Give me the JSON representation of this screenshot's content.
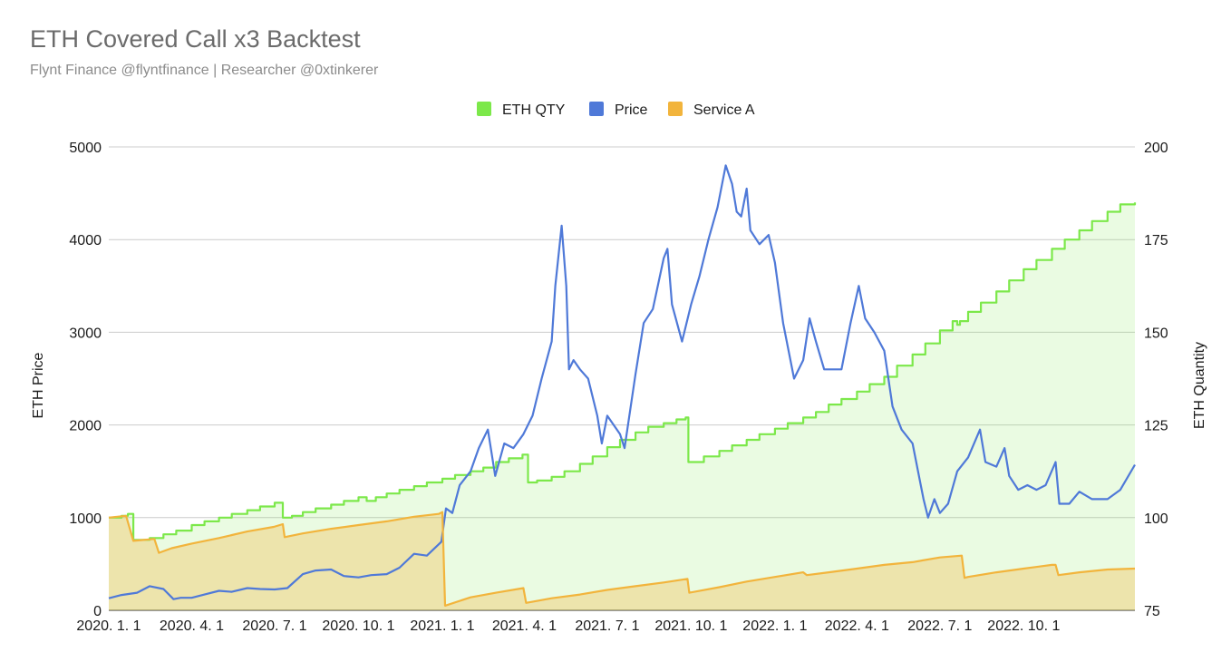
{
  "title": "ETH Covered Call x3 Backtest",
  "subtitle": "Flynt Finance @flyntfinance | Researcher @0xtinkerer",
  "colors": {
    "eth_qty": "#7ce84a",
    "price": "#4f79d8",
    "service_a": "#f2b43c",
    "grid": "#cccccc"
  },
  "chart_data": {
    "type": "line",
    "title": "ETH Covered Call x3 Backtest",
    "subtitle": "Flynt Finance @flyntfinance | Researcher @0xtinkerer",
    "legend": {
      "placement": "top-center",
      "entries": [
        "ETH QTY",
        "Price",
        "Service A"
      ]
    },
    "grid": true,
    "x_range": [
      "2020-01-01",
      "2023-01-31"
    ],
    "x_ticks": [
      {
        "label": "2020. 1. 1",
        "date": "2020-01-01"
      },
      {
        "label": "2020. 4. 1",
        "date": "2020-04-01"
      },
      {
        "label": "2020. 7. 1",
        "date": "2020-07-01"
      },
      {
        "label": "2020. 10. 1",
        "date": "2020-10-01"
      },
      {
        "label": "2021. 1. 1",
        "date": "2021-01-01"
      },
      {
        "label": "2021. 4. 1",
        "date": "2021-04-01"
      },
      {
        "label": "2021. 7. 1",
        "date": "2021-07-01"
      },
      {
        "label": "2021. 10. 1",
        "date": "2021-10-01"
      },
      {
        "label": "2022. 1. 1",
        "date": "2022-01-01"
      },
      {
        "label": "2022. 4. 1",
        "date": "2022-04-01"
      },
      {
        "label": "2022. 7. 1",
        "date": "2022-07-01"
      },
      {
        "label": "2022. 10. 1",
        "date": "2022-10-01"
      }
    ],
    "y_left": {
      "label": "ETH Price",
      "range": [
        0,
        5000
      ],
      "ticks": [
        "0",
        "1000",
        "2000",
        "3000",
        "4000",
        "5000"
      ]
    },
    "y_right": {
      "label": "ETH Quantity",
      "range": [
        75,
        200
      ],
      "ticks": [
        "75",
        "100",
        "125",
        "150",
        "175",
        "200"
      ]
    },
    "series": [
      {
        "name": "ETH QTY",
        "axis": "right",
        "style": "step-area",
        "points": [
          [
            "2020-01-01",
            100
          ],
          [
            "2020-01-15",
            100.5
          ],
          [
            "2020-01-22",
            101
          ],
          [
            "2020-01-28",
            94
          ],
          [
            "2020-02-15",
            94.5
          ],
          [
            "2020-03-01",
            95.5
          ],
          [
            "2020-03-15",
            96.5
          ],
          [
            "2020-04-01",
            98
          ],
          [
            "2020-04-15",
            99
          ],
          [
            "2020-05-01",
            100
          ],
          [
            "2020-05-15",
            101
          ],
          [
            "2020-06-01",
            102
          ],
          [
            "2020-06-15",
            103
          ],
          [
            "2020-07-01",
            104
          ],
          [
            "2020-07-10",
            100
          ],
          [
            "2020-07-20",
            100.5
          ],
          [
            "2020-08-01",
            101.5
          ],
          [
            "2020-08-15",
            102.5
          ],
          [
            "2020-09-01",
            103.5
          ],
          [
            "2020-09-15",
            104.5
          ],
          [
            "2020-10-01",
            105.5
          ],
          [
            "2020-10-10",
            104.5
          ],
          [
            "2020-10-20",
            105.5
          ],
          [
            "2020-11-01",
            106.5
          ],
          [
            "2020-11-15",
            107.5
          ],
          [
            "2020-12-01",
            108.5
          ],
          [
            "2020-12-15",
            109.5
          ],
          [
            "2021-01-01",
            110.5
          ],
          [
            "2021-01-15",
            111.5
          ],
          [
            "2021-02-01",
            112.5
          ],
          [
            "2021-02-15",
            113.5
          ],
          [
            "2021-03-01",
            115
          ],
          [
            "2021-03-15",
            116
          ],
          [
            "2021-03-30",
            117
          ],
          [
            "2021-04-05",
            109.5
          ],
          [
            "2021-04-15",
            110
          ],
          [
            "2021-05-01",
            111
          ],
          [
            "2021-05-15",
            112.5
          ],
          [
            "2021-06-01",
            114.5
          ],
          [
            "2021-06-15",
            116.5
          ],
          [
            "2021-07-01",
            119
          ],
          [
            "2021-07-15",
            121
          ],
          [
            "2021-08-01",
            123
          ],
          [
            "2021-08-15",
            124.5
          ],
          [
            "2021-09-01",
            125.5
          ],
          [
            "2021-09-15",
            126.5
          ],
          [
            "2021-09-25",
            127
          ],
          [
            "2021-09-28",
            115
          ],
          [
            "2021-10-15",
            116.5
          ],
          [
            "2021-11-01",
            118
          ],
          [
            "2021-11-15",
            119.5
          ],
          [
            "2021-12-01",
            121
          ],
          [
            "2021-12-15",
            122.5
          ],
          [
            "2022-01-01",
            124
          ],
          [
            "2022-01-15",
            125.5
          ],
          [
            "2022-02-01",
            127
          ],
          [
            "2022-02-15",
            128.5
          ],
          [
            "2022-03-01",
            130.5
          ],
          [
            "2022-03-15",
            132
          ],
          [
            "2022-04-01",
            134
          ],
          [
            "2022-04-15",
            136
          ],
          [
            "2022-05-01",
            138
          ],
          [
            "2022-05-15",
            141
          ],
          [
            "2022-06-01",
            144
          ],
          [
            "2022-06-15",
            147
          ],
          [
            "2022-07-01",
            150.5
          ],
          [
            "2022-07-15",
            153
          ],
          [
            "2022-07-20",
            152
          ],
          [
            "2022-07-23",
            153
          ],
          [
            "2022-08-01",
            155.5
          ],
          [
            "2022-08-15",
            158
          ],
          [
            "2022-09-01",
            161
          ],
          [
            "2022-09-15",
            164
          ],
          [
            "2022-10-01",
            167
          ],
          [
            "2022-10-15",
            169.5
          ],
          [
            "2022-11-01",
            172.5
          ],
          [
            "2022-11-15",
            175
          ],
          [
            "2022-12-01",
            177.5
          ],
          [
            "2022-12-15",
            180
          ],
          [
            "2023-01-01",
            182.5
          ],
          [
            "2023-01-15",
            184.5
          ],
          [
            "2023-01-31",
            185
          ]
        ]
      },
      {
        "name": "Price",
        "axis": "left",
        "style": "line",
        "points": [
          [
            "2020-01-01",
            130
          ],
          [
            "2020-01-15",
            165
          ],
          [
            "2020-02-01",
            190
          ],
          [
            "2020-02-15",
            260
          ],
          [
            "2020-03-01",
            230
          ],
          [
            "2020-03-12",
            120
          ],
          [
            "2020-03-20",
            135
          ],
          [
            "2020-04-01",
            135
          ],
          [
            "2020-04-15",
            170
          ],
          [
            "2020-05-01",
            210
          ],
          [
            "2020-05-15",
            200
          ],
          [
            "2020-06-01",
            240
          ],
          [
            "2020-06-15",
            230
          ],
          [
            "2020-07-01",
            225
          ],
          [
            "2020-07-15",
            240
          ],
          [
            "2020-08-01",
            390
          ],
          [
            "2020-08-15",
            430
          ],
          [
            "2020-09-01",
            440
          ],
          [
            "2020-09-15",
            370
          ],
          [
            "2020-10-01",
            355
          ],
          [
            "2020-10-15",
            380
          ],
          [
            "2020-11-01",
            390
          ],
          [
            "2020-11-15",
            460
          ],
          [
            "2020-12-01",
            610
          ],
          [
            "2020-12-15",
            590
          ],
          [
            "2020-12-31",
            740
          ],
          [
            "2021-01-05",
            1100
          ],
          [
            "2021-01-12",
            1050
          ],
          [
            "2021-01-20",
            1350
          ],
          [
            "2021-02-01",
            1500
          ],
          [
            "2021-02-10",
            1750
          ],
          [
            "2021-02-20",
            1950
          ],
          [
            "2021-02-28",
            1450
          ],
          [
            "2021-03-10",
            1800
          ],
          [
            "2021-03-20",
            1750
          ],
          [
            "2021-03-31",
            1900
          ],
          [
            "2021-04-10",
            2100
          ],
          [
            "2021-04-20",
            2500
          ],
          [
            "2021-05-01",
            2900
          ],
          [
            "2021-05-05",
            3500
          ],
          [
            "2021-05-12",
            4150
          ],
          [
            "2021-05-17",
            3500
          ],
          [
            "2021-05-20",
            2600
          ],
          [
            "2021-05-25",
            2700
          ],
          [
            "2021-06-01",
            2600
          ],
          [
            "2021-06-10",
            2500
          ],
          [
            "2021-06-20",
            2100
          ],
          [
            "2021-06-25",
            1800
          ],
          [
            "2021-07-01",
            2100
          ],
          [
            "2021-07-15",
            1900
          ],
          [
            "2021-07-20",
            1750
          ],
          [
            "2021-08-01",
            2550
          ],
          [
            "2021-08-10",
            3100
          ],
          [
            "2021-08-20",
            3250
          ],
          [
            "2021-09-01",
            3800
          ],
          [
            "2021-09-05",
            3900
          ],
          [
            "2021-09-10",
            3300
          ],
          [
            "2021-09-21",
            2900
          ],
          [
            "2021-10-01",
            3300
          ],
          [
            "2021-10-10",
            3600
          ],
          [
            "2021-10-20",
            4000
          ],
          [
            "2021-10-30",
            4350
          ],
          [
            "2021-11-08",
            4800
          ],
          [
            "2021-11-15",
            4600
          ],
          [
            "2021-11-20",
            4300
          ],
          [
            "2021-11-25",
            4250
          ],
          [
            "2021-12-01",
            4550
          ],
          [
            "2021-12-05",
            4100
          ],
          [
            "2021-12-15",
            3950
          ],
          [
            "2021-12-25",
            4050
          ],
          [
            "2022-01-01",
            3750
          ],
          [
            "2022-01-10",
            3100
          ],
          [
            "2022-01-22",
            2500
          ],
          [
            "2022-02-01",
            2700
          ],
          [
            "2022-02-08",
            3150
          ],
          [
            "2022-02-15",
            2900
          ],
          [
            "2022-02-24",
            2600
          ],
          [
            "2022-03-05",
            2600
          ],
          [
            "2022-03-15",
            2600
          ],
          [
            "2022-03-25",
            3100
          ],
          [
            "2022-04-03",
            3500
          ],
          [
            "2022-04-10",
            3150
          ],
          [
            "2022-04-20",
            3000
          ],
          [
            "2022-05-01",
            2800
          ],
          [
            "2022-05-10",
            2200
          ],
          [
            "2022-05-20",
            1950
          ],
          [
            "2022-06-01",
            1800
          ],
          [
            "2022-06-13",
            1200
          ],
          [
            "2022-06-18",
            1000
          ],
          [
            "2022-06-25",
            1200
          ],
          [
            "2022-07-01",
            1050
          ],
          [
            "2022-07-10",
            1150
          ],
          [
            "2022-07-20",
            1500
          ],
          [
            "2022-08-01",
            1650
          ],
          [
            "2022-08-14",
            1950
          ],
          [
            "2022-08-20",
            1600
          ],
          [
            "2022-09-01",
            1550
          ],
          [
            "2022-09-10",
            1750
          ],
          [
            "2022-09-15",
            1450
          ],
          [
            "2022-09-25",
            1300
          ],
          [
            "2022-10-05",
            1350
          ],
          [
            "2022-10-15",
            1300
          ],
          [
            "2022-10-25",
            1350
          ],
          [
            "2022-11-05",
            1600
          ],
          [
            "2022-11-09",
            1150
          ],
          [
            "2022-11-20",
            1150
          ],
          [
            "2022-12-01",
            1280
          ],
          [
            "2022-12-15",
            1200
          ],
          [
            "2023-01-01",
            1200
          ],
          [
            "2023-01-15",
            1300
          ],
          [
            "2023-01-31",
            1570
          ]
        ]
      },
      {
        "name": "Service A",
        "axis": "left",
        "style": "area",
        "points": [
          [
            "2020-01-01",
            1000
          ],
          [
            "2020-01-20",
            1020
          ],
          [
            "2020-01-28",
            750
          ],
          [
            "2020-02-20",
            770
          ],
          [
            "2020-02-25",
            620
          ],
          [
            "2020-03-10",
            670
          ],
          [
            "2020-04-01",
            720
          ],
          [
            "2020-05-01",
            780
          ],
          [
            "2020-06-01",
            850
          ],
          [
            "2020-06-30",
            900
          ],
          [
            "2020-07-10",
            930
          ],
          [
            "2020-07-12",
            790
          ],
          [
            "2020-08-01",
            830
          ],
          [
            "2020-09-01",
            880
          ],
          [
            "2020-10-01",
            920
          ],
          [
            "2020-11-01",
            960
          ],
          [
            "2020-12-01",
            1010
          ],
          [
            "2020-12-28",
            1040
          ],
          [
            "2021-01-01",
            1060
          ],
          [
            "2021-01-04",
            50
          ],
          [
            "2021-02-01",
            140
          ],
          [
            "2021-03-01",
            190
          ],
          [
            "2021-03-31",
            240
          ],
          [
            "2021-04-03",
            80
          ],
          [
            "2021-05-01",
            130
          ],
          [
            "2021-06-01",
            170
          ],
          [
            "2021-07-01",
            220
          ],
          [
            "2021-08-01",
            260
          ],
          [
            "2021-09-01",
            300
          ],
          [
            "2021-09-27",
            340
          ],
          [
            "2021-09-29",
            190
          ],
          [
            "2021-11-01",
            250
          ],
          [
            "2021-12-01",
            310
          ],
          [
            "2022-01-01",
            360
          ],
          [
            "2022-02-01",
            410
          ],
          [
            "2022-02-05",
            380
          ],
          [
            "2022-03-01",
            410
          ],
          [
            "2022-04-01",
            450
          ],
          [
            "2022-05-01",
            490
          ],
          [
            "2022-06-01",
            520
          ],
          [
            "2022-07-01",
            570
          ],
          [
            "2022-07-25",
            590
          ],
          [
            "2022-07-28",
            350
          ],
          [
            "2022-08-01",
            360
          ],
          [
            "2022-09-01",
            410
          ],
          [
            "2022-10-01",
            450
          ],
          [
            "2022-11-01",
            490
          ],
          [
            "2022-11-05",
            490
          ],
          [
            "2022-11-08",
            380
          ],
          [
            "2022-12-01",
            410
          ],
          [
            "2023-01-01",
            440
          ],
          [
            "2023-01-31",
            450
          ]
        ]
      }
    ]
  }
}
